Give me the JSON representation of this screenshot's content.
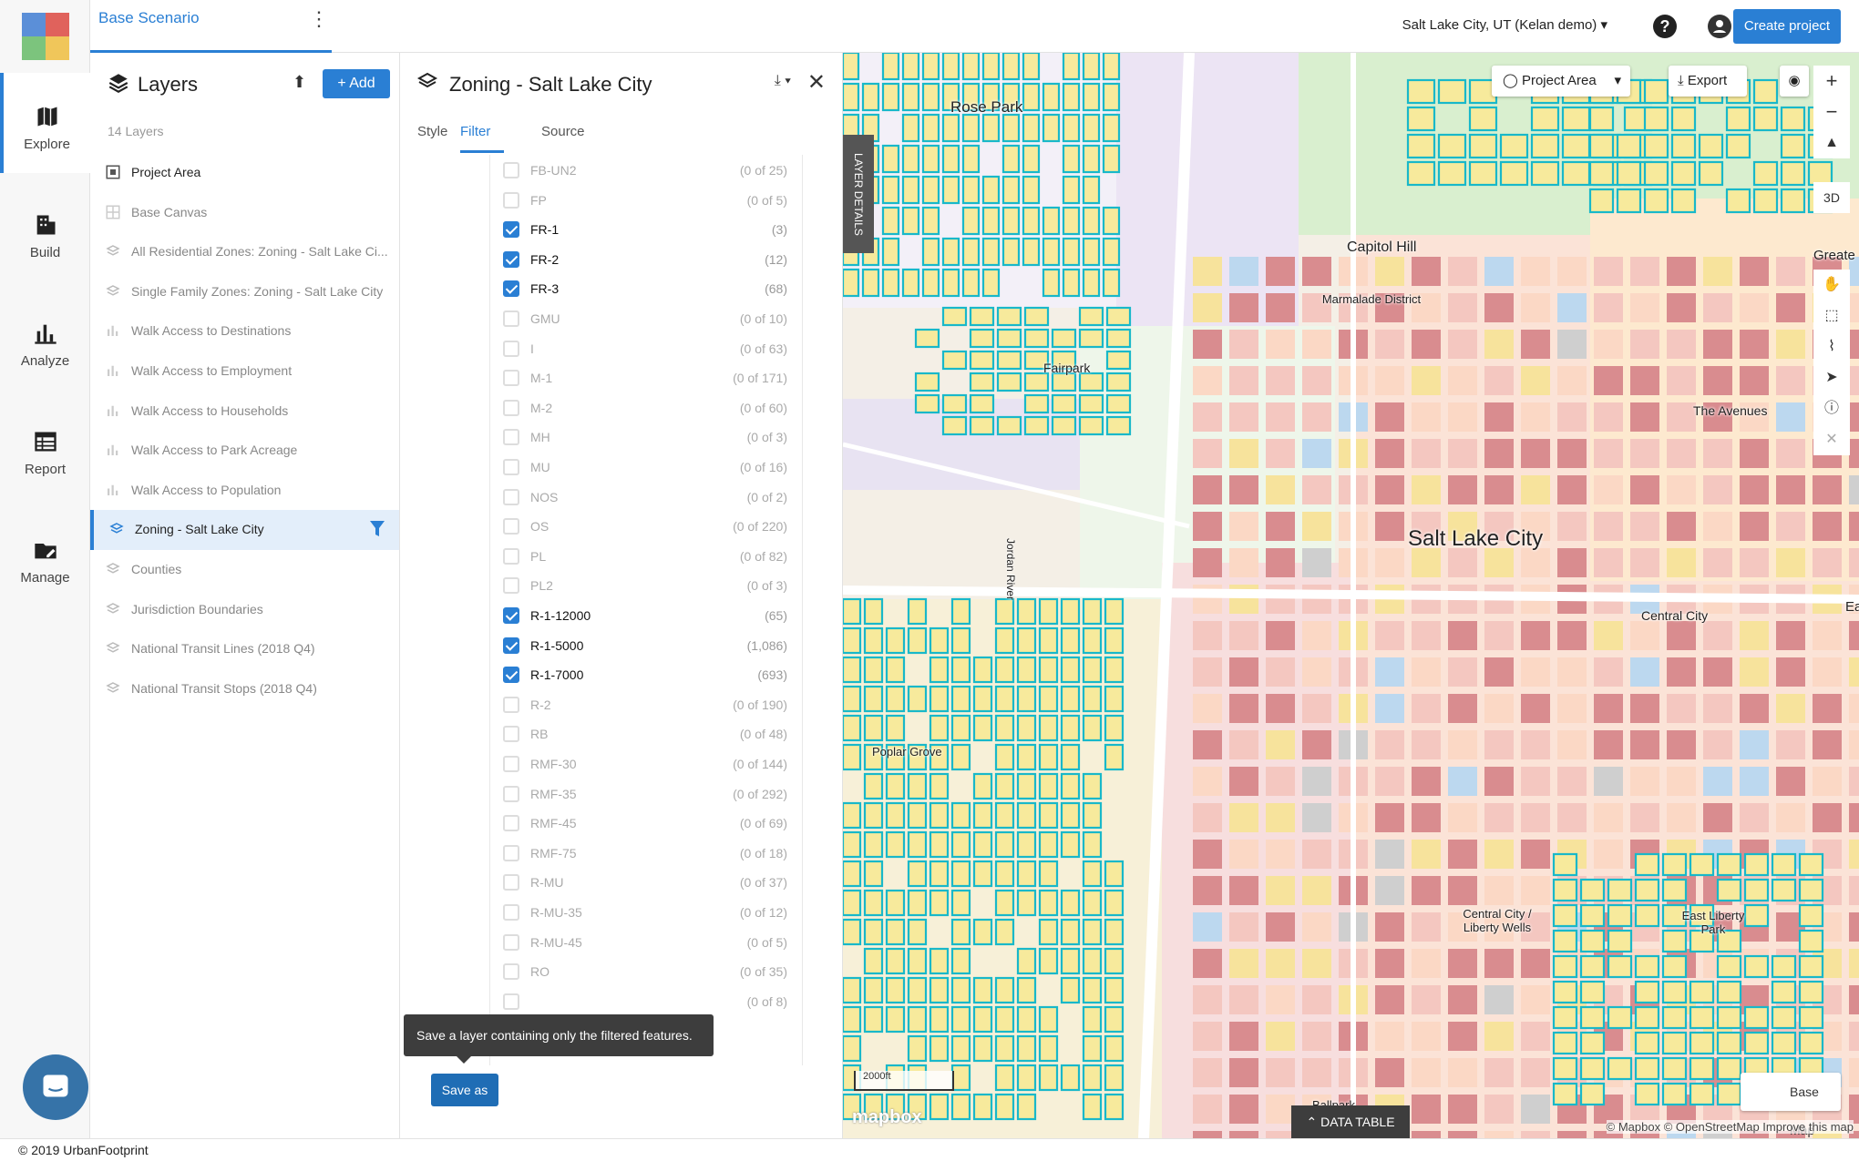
{
  "header": {
    "scenario": "Base Scenario",
    "city_select": "Salt Lake City, UT (Kelan demo)",
    "create_project": "Create project"
  },
  "rail": {
    "items": [
      {
        "label": "Explore",
        "icon": "map-icon"
      },
      {
        "label": "Build",
        "icon": "building-icon"
      },
      {
        "label": "Analyze",
        "icon": "bar-chart-icon"
      },
      {
        "label": "Report",
        "icon": "table-icon"
      },
      {
        "label": "Manage",
        "icon": "folder-edit-icon"
      }
    ]
  },
  "layers": {
    "title": "Layers",
    "add_label": "Add",
    "count": "14 Layers",
    "items": [
      {
        "label": "Project Area"
      },
      {
        "label": "Base Canvas"
      },
      {
        "label": "All Residential Zones: Zoning - Salt Lake Ci..."
      },
      {
        "label": "Single Family Zones: Zoning - Salt Lake City"
      },
      {
        "label": "Walk Access to Destinations"
      },
      {
        "label": "Walk Access to Employment"
      },
      {
        "label": "Walk Access to Households"
      },
      {
        "label": "Walk Access to Park Acreage"
      },
      {
        "label": "Walk Access to Population"
      },
      {
        "label": "Zoning - Salt Lake City"
      },
      {
        "label": "Counties"
      },
      {
        "label": "Jurisdiction Boundaries"
      },
      {
        "label": "National Transit Lines (2018 Q4)"
      },
      {
        "label": "National Transit Stops (2018 Q4)"
      }
    ]
  },
  "details": {
    "title": "Zoning - Salt Lake City",
    "tabs": [
      "Style",
      "Filter",
      "Source"
    ],
    "filters": [
      {
        "name": "FB-UN2",
        "count": "(0 of 25)",
        "checked": false
      },
      {
        "name": "FP",
        "count": "(0 of 5)",
        "checked": false
      },
      {
        "name": "FR-1",
        "count": "(3)",
        "checked": true
      },
      {
        "name": "FR-2",
        "count": "(12)",
        "checked": true
      },
      {
        "name": "FR-3",
        "count": "(68)",
        "checked": true
      },
      {
        "name": "GMU",
        "count": "(0 of 10)",
        "checked": false
      },
      {
        "name": "I",
        "count": "(0 of 63)",
        "checked": false
      },
      {
        "name": "M-1",
        "count": "(0 of 171)",
        "checked": false
      },
      {
        "name": "M-2",
        "count": "(0 of 60)",
        "checked": false
      },
      {
        "name": "MH",
        "count": "(0 of 3)",
        "checked": false
      },
      {
        "name": "MU",
        "count": "(0 of 16)",
        "checked": false
      },
      {
        "name": "NOS",
        "count": "(0 of 2)",
        "checked": false
      },
      {
        "name": "OS",
        "count": "(0 of 220)",
        "checked": false
      },
      {
        "name": "PL",
        "count": "(0 of 82)",
        "checked": false
      },
      {
        "name": "PL2",
        "count": "(0 of 3)",
        "checked": false
      },
      {
        "name": "R-1-12000",
        "count": "(65)",
        "checked": true
      },
      {
        "name": "R-1-5000",
        "count": "(1,086)",
        "checked": true
      },
      {
        "name": "R-1-7000",
        "count": "(693)",
        "checked": true
      },
      {
        "name": "R-2",
        "count": "(0 of 190)",
        "checked": false
      },
      {
        "name": "RB",
        "count": "(0 of 48)",
        "checked": false
      },
      {
        "name": "RMF-30",
        "count": "(0 of 144)",
        "checked": false
      },
      {
        "name": "RMF-35",
        "count": "(0 of 292)",
        "checked": false
      },
      {
        "name": "RMF-45",
        "count": "(0 of 69)",
        "checked": false
      },
      {
        "name": "RMF-75",
        "count": "(0 of 18)",
        "checked": false
      },
      {
        "name": "R-MU",
        "count": "(0 of 37)",
        "checked": false
      },
      {
        "name": "R-MU-35",
        "count": "(0 of 12)",
        "checked": false
      },
      {
        "name": "R-MU-45",
        "count": "(0 of 5)",
        "checked": false
      },
      {
        "name": "RO",
        "count": "(0 of 35)",
        "checked": false
      },
      {
        "name": "",
        "count": "(0 of 8)",
        "checked": false
      }
    ],
    "tooltip": "Save a layer containing only the filtered features.",
    "save_as": "Save as"
  },
  "map": {
    "layer_details": "LAYER DETAILS",
    "project_area": "Project Area",
    "export": "Export",
    "btn_3d": "3D",
    "labels": [
      "Rose Park",
      "Capitol Hill",
      "Marmalade District",
      "Fairpark",
      "Jordan River",
      "The Avenues",
      "Salt Lake City",
      "Central City",
      "Poplar Grove",
      "Central City / Liberty Wells",
      "East Liberty Park",
      "Ballpark",
      "Greate",
      "Ea"
    ],
    "scale": "2000ft",
    "data_table": "DATA TABLE",
    "base_map": "Base Map",
    "attribution": "© Mapbox © OpenStreetMap Improve this map",
    "mapbox": "mapbox"
  },
  "footer": "© 2019 UrbanFootprint",
  "colors": {
    "accent": "#2a7fd4"
  }
}
